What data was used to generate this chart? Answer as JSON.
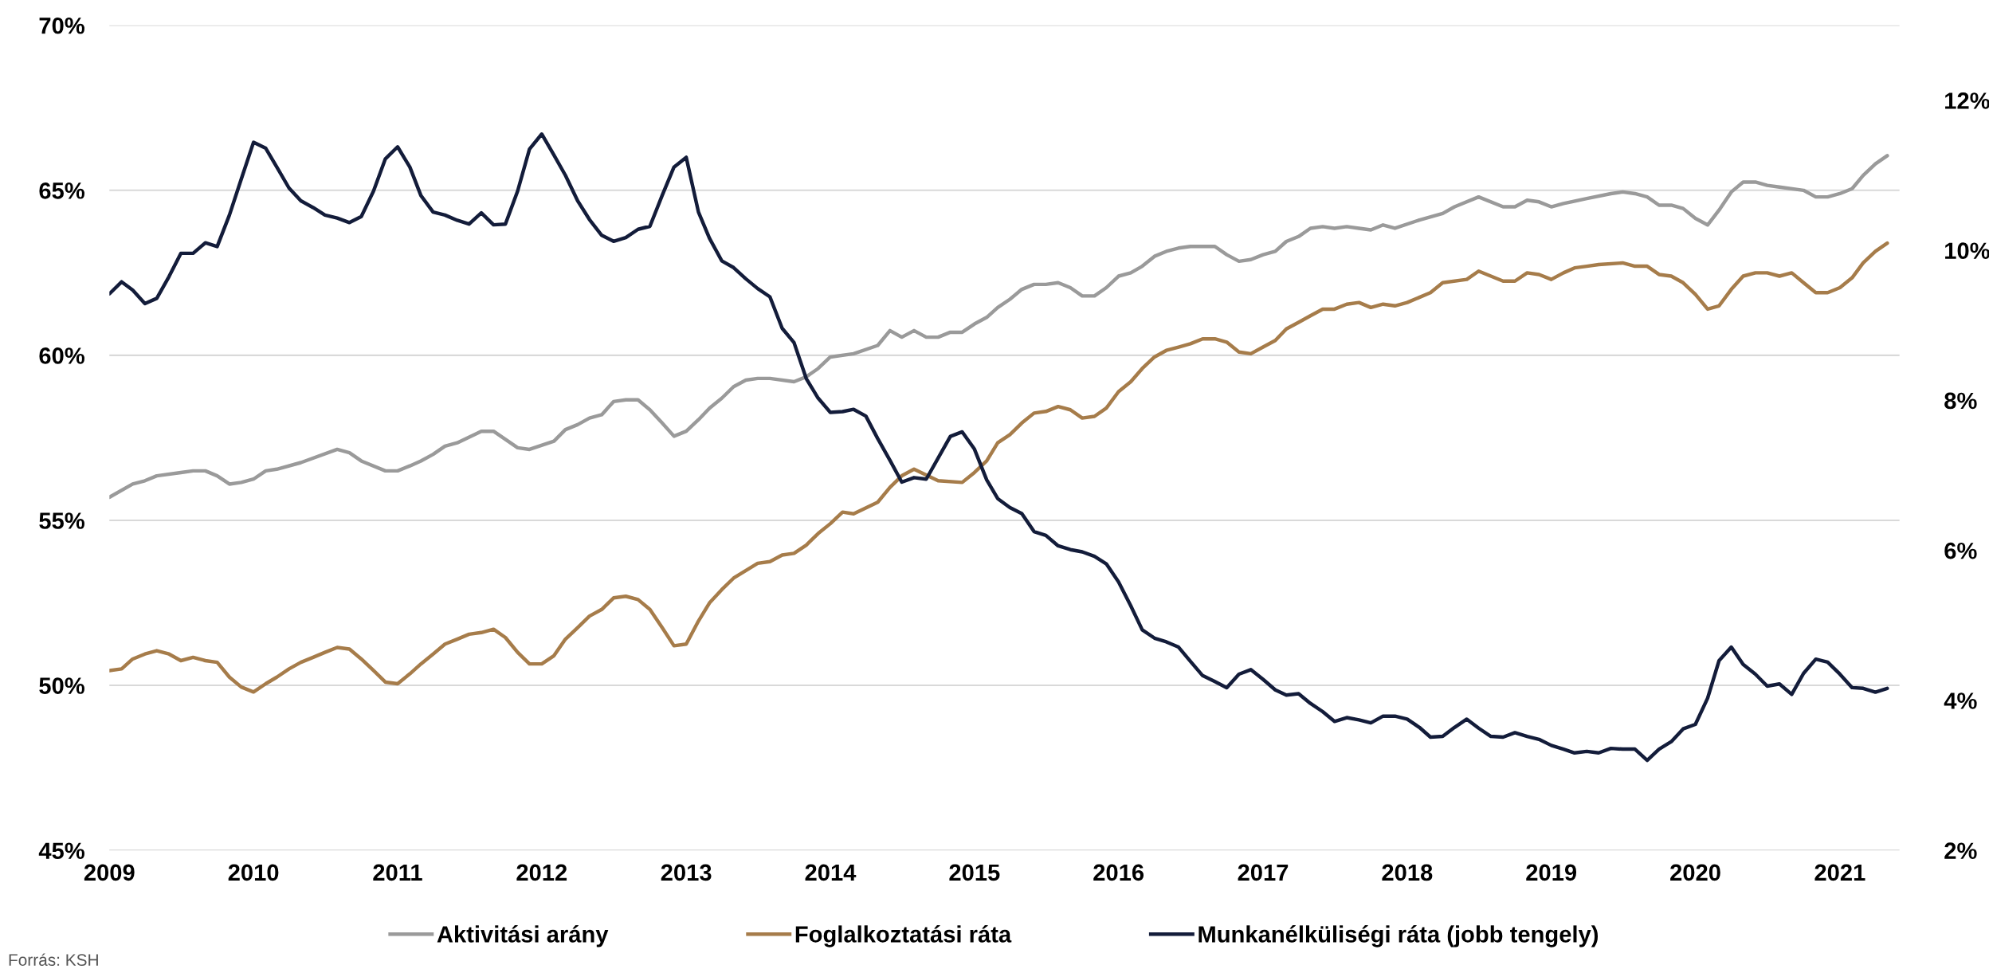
{
  "chart_data": {
    "type": "line",
    "annotations": [
      "Forrás: KSH"
    ],
    "xlim": [
      "2009-01",
      "2021-06"
    ],
    "xticks": [
      "2009",
      "2010",
      "2011",
      "2012",
      "2013",
      "2014",
      "2015",
      "2016",
      "2017",
      "2018",
      "2019",
      "2020",
      "2021"
    ],
    "ylim": [
      45,
      70
    ],
    "yticks": [
      {
        "value": 45,
        "label": "45%"
      },
      {
        "value": 50,
        "label": "50%"
      },
      {
        "value": 55,
        "label": "55%"
      },
      {
        "value": 60,
        "label": "60%"
      },
      {
        "value": 65,
        "label": "65%"
      },
      {
        "value": 70,
        "label": "70%"
      }
    ],
    "y2lim": [
      2,
      13
    ],
    "y2ticks": [
      {
        "value": 2,
        "label": "2%"
      },
      {
        "value": 4,
        "label": "4%"
      },
      {
        "value": 6,
        "label": "6%"
      },
      {
        "value": 8,
        "label": "8%"
      },
      {
        "value": 10,
        "label": "10%"
      },
      {
        "value": 12,
        "label": "12%"
      }
    ],
    "grid": "y",
    "legend": "bottom",
    "marker": "none",
    "line_style": "solid",
    "series": [
      {
        "name": "Aktivitási arány",
        "color": "#9a9a9a",
        "x": [
          "2009-01",
          "2009-03",
          "2009-04",
          "2009-05",
          "2009-07",
          "2009-08",
          "2009-09",
          "2009-10",
          "2009-11",
          "2009-12",
          "2010-01",
          "2010-02",
          "2010-03",
          "2010-05",
          "2010-08",
          "2010-09",
          "2010-10",
          "2010-12",
          "2011-01",
          "2011-02",
          "2011-03",
          "2011-04",
          "2011-05",
          "2011-06",
          "2011-08",
          "2011-09",
          "2011-11",
          "2011-12",
          "2012-02",
          "2012-03",
          "2012-04",
          "2012-05",
          "2012-06",
          "2012-07",
          "2012-08",
          "2012-09",
          "2012-10",
          "2012-11",
          "2012-12",
          "2013-01",
          "2013-02",
          "2013-03",
          "2013-04",
          "2013-05",
          "2013-06",
          "2013-07",
          "2013-08",
          "2013-10",
          "2013-11",
          "2013-12",
          "2014-01",
          "2014-03",
          "2014-05",
          "2014-06",
          "2014-07",
          "2014-08",
          "2014-09",
          "2014-10",
          "2014-11",
          "2014-12",
          "2015-01",
          "2015-02",
          "2015-03",
          "2015-04",
          "2015-05",
          "2015-06",
          "2015-07",
          "2015-08",
          "2015-09",
          "2015-10",
          "2015-11",
          "2015-12",
          "2016-01",
          "2016-02",
          "2016-03",
          "2016-04",
          "2016-05",
          "2016-06",
          "2016-07",
          "2016-08",
          "2016-09",
          "2016-10",
          "2016-11",
          "2016-12",
          "2017-01",
          "2017-02",
          "2017-03",
          "2017-04",
          "2017-05",
          "2017-06",
          "2017-07",
          "2017-08",
          "2017-09",
          "2017-10",
          "2017-11",
          "2017-12",
          "2018-02",
          "2018-04",
          "2018-05",
          "2018-07",
          "2018-09",
          "2018-10",
          "2018-11",
          "2018-12",
          "2019-01",
          "2019-02",
          "2019-04",
          "2019-06",
          "2019-07",
          "2019-08",
          "2019-09",
          "2019-10",
          "2019-11",
          "2019-12",
          "2020-01",
          "2020-02",
          "2020-03",
          "2020-04",
          "2020-05",
          "2020-06",
          "2020-07",
          "2020-08",
          "2020-10",
          "2020-11",
          "2020-12",
          "2021-01",
          "2021-02",
          "2021-03",
          "2021-04",
          "2021-05"
        ],
        "values": [
          55.7,
          56.1,
          56.2,
          56.35,
          56.45,
          56.5,
          56.5,
          56.35,
          56.1,
          56.15,
          56.25,
          56.5,
          56.55,
          56.75,
          57.15,
          57.05,
          56.8,
          56.5,
          56.5,
          56.65,
          56.8,
          57.0,
          57.25,
          57.35,
          57.7,
          57.7,
          57.2,
          57.15,
          57.4,
          57.75,
          57.9,
          58.1,
          58.2,
          58.6,
          58.65,
          58.65,
          58.35,
          57.95,
          57.55,
          57.7,
          58.05,
          58.4,
          58.7,
          59.05,
          59.25,
          59.3,
          59.3,
          59.2,
          59.35,
          59.6,
          59.95,
          60.05,
          60.3,
          60.75,
          60.55,
          60.75,
          60.55,
          60.55,
          60.7,
          60.7,
          60.95,
          61.15,
          61.45,
          61.7,
          62.0,
          62.15,
          62.15,
          62.2,
          62.05,
          61.8,
          61.8,
          62.05,
          62.4,
          62.5,
          62.7,
          63.0,
          63.15,
          63.25,
          63.3,
          63.3,
          63.3,
          63.05,
          62.85,
          62.9,
          63.05,
          63.15,
          63.45,
          63.6,
          63.85,
          63.9,
          63.85,
          63.9,
          63.85,
          63.8,
          63.95,
          63.85,
          64.1,
          64.3,
          64.5,
          64.8,
          64.5,
          64.5,
          64.7,
          64.65,
          64.5,
          64.6,
          64.75,
          64.9,
          64.95,
          64.9,
          64.8,
          64.55,
          64.55,
          64.45,
          64.15,
          63.95,
          64.4,
          64.95,
          65.25,
          65.25,
          65.15,
          65.1,
          65.0,
          64.8,
          64.8,
          64.9,
          65.05,
          65.45,
          65.8,
          66.05
        ]
      },
      {
        "name": "Foglalkoztatási ráta",
        "color": "#a67c4a",
        "x": [
          "2009-01",
          "2009-02",
          "2009-03",
          "2009-04",
          "2009-05",
          "2009-06",
          "2009-07",
          "2009-08",
          "2009-09",
          "2009-10",
          "2009-11",
          "2009-12",
          "2010-01",
          "2010-02",
          "2010-03",
          "2010-04",
          "2010-05",
          "2010-06",
          "2010-07",
          "2010-08",
          "2010-09",
          "2010-10",
          "2010-11",
          "2010-12",
          "2011-01",
          "2011-02",
          "2011-03",
          "2011-04",
          "2011-05",
          "2011-06",
          "2011-07",
          "2011-08",
          "2011-09",
          "2011-10",
          "2011-11",
          "2011-12",
          "2012-01",
          "2012-02",
          "2012-03",
          "2012-04",
          "2012-05",
          "2012-06",
          "2012-07",
          "2012-08",
          "2012-09",
          "2012-10",
          "2012-11",
          "2012-12",
          "2013-01",
          "2013-02",
          "2013-03",
          "2013-04",
          "2013-05",
          "2013-07",
          "2013-08",
          "2013-09",
          "2013-10",
          "2013-11",
          "2013-12",
          "2014-01",
          "2014-02",
          "2014-03",
          "2014-05",
          "2014-06",
          "2014-07",
          "2014-08",
          "2014-10",
          "2014-12",
          "2015-01",
          "2015-02",
          "2015-03",
          "2015-04",
          "2015-05",
          "2015-06",
          "2015-07",
          "2015-08",
          "2015-09",
          "2015-10",
          "2015-11",
          "2015-12",
          "2016-01",
          "2016-02",
          "2016-03",
          "2016-04",
          "2016-05",
          "2016-06",
          "2016-07",
          "2016-08",
          "2016-09",
          "2016-10",
          "2016-11",
          "2016-12",
          "2017-01",
          "2017-02",
          "2017-03",
          "2017-04",
          "2017-05",
          "2017-06",
          "2017-07",
          "2017-08",
          "2017-09",
          "2017-10",
          "2017-11",
          "2017-12",
          "2018-01",
          "2018-03",
          "2018-04",
          "2018-06",
          "2018-07",
          "2018-09",
          "2018-10",
          "2018-11",
          "2018-12",
          "2019-01",
          "2019-02",
          "2019-03",
          "2019-04",
          "2019-05",
          "2019-07",
          "2019-08",
          "2019-09",
          "2019-10",
          "2019-11",
          "2019-12",
          "2020-01",
          "2020-02",
          "2020-03",
          "2020-04",
          "2020-05",
          "2020-06",
          "2020-07",
          "2020-08",
          "2020-09",
          "2020-10",
          "2020-11",
          "2020-12",
          "2021-01",
          "2021-02",
          "2021-03",
          "2021-04",
          "2021-05"
        ],
        "values": [
          50.45,
          50.5,
          50.8,
          50.95,
          51.05,
          50.95,
          50.75,
          50.85,
          50.75,
          50.7,
          50.25,
          49.95,
          49.8,
          50.05,
          50.25,
          50.5,
          50.7,
          50.85,
          51.0,
          51.15,
          51.1,
          50.8,
          50.45,
          50.1,
          50.05,
          50.35,
          50.65,
          50.95,
          51.25,
          51.4,
          51.55,
          51.6,
          51.7,
          51.45,
          51.0,
          50.65,
          50.65,
          50.9,
          51.4,
          51.75,
          52.1,
          52.3,
          52.65,
          52.7,
          52.6,
          52.3,
          51.75,
          51.2,
          51.25,
          51.95,
          52.5,
          52.9,
          53.25,
          53.7,
          53.75,
          53.95,
          54.0,
          54.25,
          54.6,
          54.9,
          55.25,
          55.2,
          55.55,
          56.0,
          56.35,
          56.55,
          56.2,
          56.15,
          56.45,
          56.8,
          57.35,
          57.6,
          57.95,
          58.25,
          58.3,
          58.45,
          58.35,
          58.1,
          58.15,
          58.4,
          58.9,
          59.2,
          59.6,
          59.95,
          60.15,
          60.25,
          60.35,
          60.5,
          60.5,
          60.4,
          60.1,
          60.05,
          60.25,
          60.45,
          60.8,
          61.0,
          61.2,
          61.4,
          61.4,
          61.55,
          61.6,
          61.45,
          61.55,
          61.5,
          61.6,
          61.9,
          62.2,
          62.3,
          62.55,
          62.25,
          62.25,
          62.5,
          62.45,
          62.3,
          62.5,
          62.65,
          62.7,
          62.75,
          62.8,
          62.7,
          62.7,
          62.45,
          62.4,
          62.2,
          61.85,
          61.4,
          61.5,
          62.0,
          62.4,
          62.5,
          62.5,
          62.4,
          62.5,
          62.2,
          61.9,
          61.9,
          62.05,
          62.35,
          62.8,
          63.15,
          63.4
        ]
      },
      {
        "name": "Munkanélküliségi ráta (jobb tengely)",
        "color": "#131c3a",
        "axis": "y2",
        "x": [
          "2009-01",
          "2009-02",
          "2009-03",
          "2009-04",
          "2009-05",
          "2009-06",
          "2009-07",
          "2009-08",
          "2009-09",
          "2009-10",
          "2009-11",
          "2009-12",
          "2010-01",
          "2010-02",
          "2010-03",
          "2010-04",
          "2010-05",
          "2010-06",
          "2010-07",
          "2010-08",
          "2010-09",
          "2010-10",
          "2010-11",
          "2010-12",
          "2011-01",
          "2011-02",
          "2011-03",
          "2011-04",
          "2011-05",
          "2011-06",
          "2011-07",
          "2011-08",
          "2011-09",
          "2011-10",
          "2011-11",
          "2011-12",
          "2012-01",
          "2012-02",
          "2012-03",
          "2012-04",
          "2012-05",
          "2012-06",
          "2012-07",
          "2012-08",
          "2012-09",
          "2012-10",
          "2012-11",
          "2012-12",
          "2013-01",
          "2013-02",
          "2013-03",
          "2013-04",
          "2013-05",
          "2013-06",
          "2013-07",
          "2013-08",
          "2013-09",
          "2013-10",
          "2013-11",
          "2013-12",
          "2014-01",
          "2014-02",
          "2014-03",
          "2014-04",
          "2014-05",
          "2014-06",
          "2014-07",
          "2014-08",
          "2014-09",
          "2014-10",
          "2014-11",
          "2014-12",
          "2015-01",
          "2015-02",
          "2015-03",
          "2015-04",
          "2015-05",
          "2015-06",
          "2015-07",
          "2015-08",
          "2015-09",
          "2015-10",
          "2015-11",
          "2015-12",
          "2016-01",
          "2016-02",
          "2016-03",
          "2016-04",
          "2016-05",
          "2016-06",
          "2016-07",
          "2016-08",
          "2016-09",
          "2016-10",
          "2016-11",
          "2016-12",
          "2017-01",
          "2017-02",
          "2017-03",
          "2017-04",
          "2017-05",
          "2017-06",
          "2017-07",
          "2017-08",
          "2017-09",
          "2017-10",
          "2017-11",
          "2017-12",
          "2018-01",
          "2018-02",
          "2018-03",
          "2018-04",
          "2018-05",
          "2018-06",
          "2018-07",
          "2018-08",
          "2018-09",
          "2018-10",
          "2018-11",
          "2018-12",
          "2019-01",
          "2019-02",
          "2019-03",
          "2019-04",
          "2019-05",
          "2019-06",
          "2019-07",
          "2019-08",
          "2019-09",
          "2019-10",
          "2019-11",
          "2019-12",
          "2020-01",
          "2020-02",
          "2020-03",
          "2020-04",
          "2020-05",
          "2020-06",
          "2020-07",
          "2020-08",
          "2020-09",
          "2020-10",
          "2020-11",
          "2020-12",
          "2021-01",
          "2021-02",
          "2021-03",
          "2021-04",
          "2021-05"
        ],
        "values": [
          9.42,
          9.58,
          9.47,
          9.29,
          9.36,
          9.65,
          9.96,
          9.96,
          10.1,
          10.05,
          10.47,
          10.95,
          11.44,
          11.36,
          11.11,
          10.83,
          10.66,
          10.57,
          10.47,
          10.43,
          10.37,
          10.45,
          10.79,
          11.22,
          11.38,
          11.11,
          10.73,
          10.51,
          10.47,
          10.4,
          10.35,
          10.5,
          10.34,
          10.35,
          10.79,
          11.35,
          11.55,
          11.27,
          11.0,
          10.66,
          10.41,
          10.2,
          10.12,
          10.17,
          10.28,
          10.32,
          10.73,
          11.11,
          11.24,
          10.51,
          10.16,
          9.86,
          9.77,
          9.62,
          9.49,
          9.38,
          8.96,
          8.77,
          8.29,
          8.03,
          7.84,
          7.85,
          7.88,
          7.79,
          7.49,
          7.2,
          6.91,
          6.97,
          6.95,
          7.23,
          7.52,
          7.58,
          7.35,
          6.94,
          6.69,
          6.57,
          6.49,
          6.25,
          6.2,
          6.06,
          6.01,
          5.98,
          5.92,
          5.82,
          5.58,
          5.26,
          4.94,
          4.83,
          4.78,
          4.71,
          4.52,
          4.33,
          4.25,
          4.17,
          4.35,
          4.41,
          4.28,
          4.14,
          4.07,
          4.09,
          3.96,
          3.85,
          3.72,
          3.77,
          3.74,
          3.7,
          3.79,
          3.79,
          3.75,
          3.64,
          3.51,
          3.52,
          3.64,
          3.75,
          3.63,
          3.52,
          3.51,
          3.57,
          3.52,
          3.48,
          3.4,
          3.35,
          3.3,
          3.32,
          3.3,
          3.36,
          3.35,
          3.35,
          3.2,
          3.35,
          3.45,
          3.62,
          3.68,
          4.03,
          4.53,
          4.71,
          4.48,
          4.35,
          4.19,
          4.22,
          4.08,
          4.36,
          4.55,
          4.51,
          4.35,
          4.17,
          4.16,
          4.11,
          4.16
        ]
      }
    ]
  }
}
